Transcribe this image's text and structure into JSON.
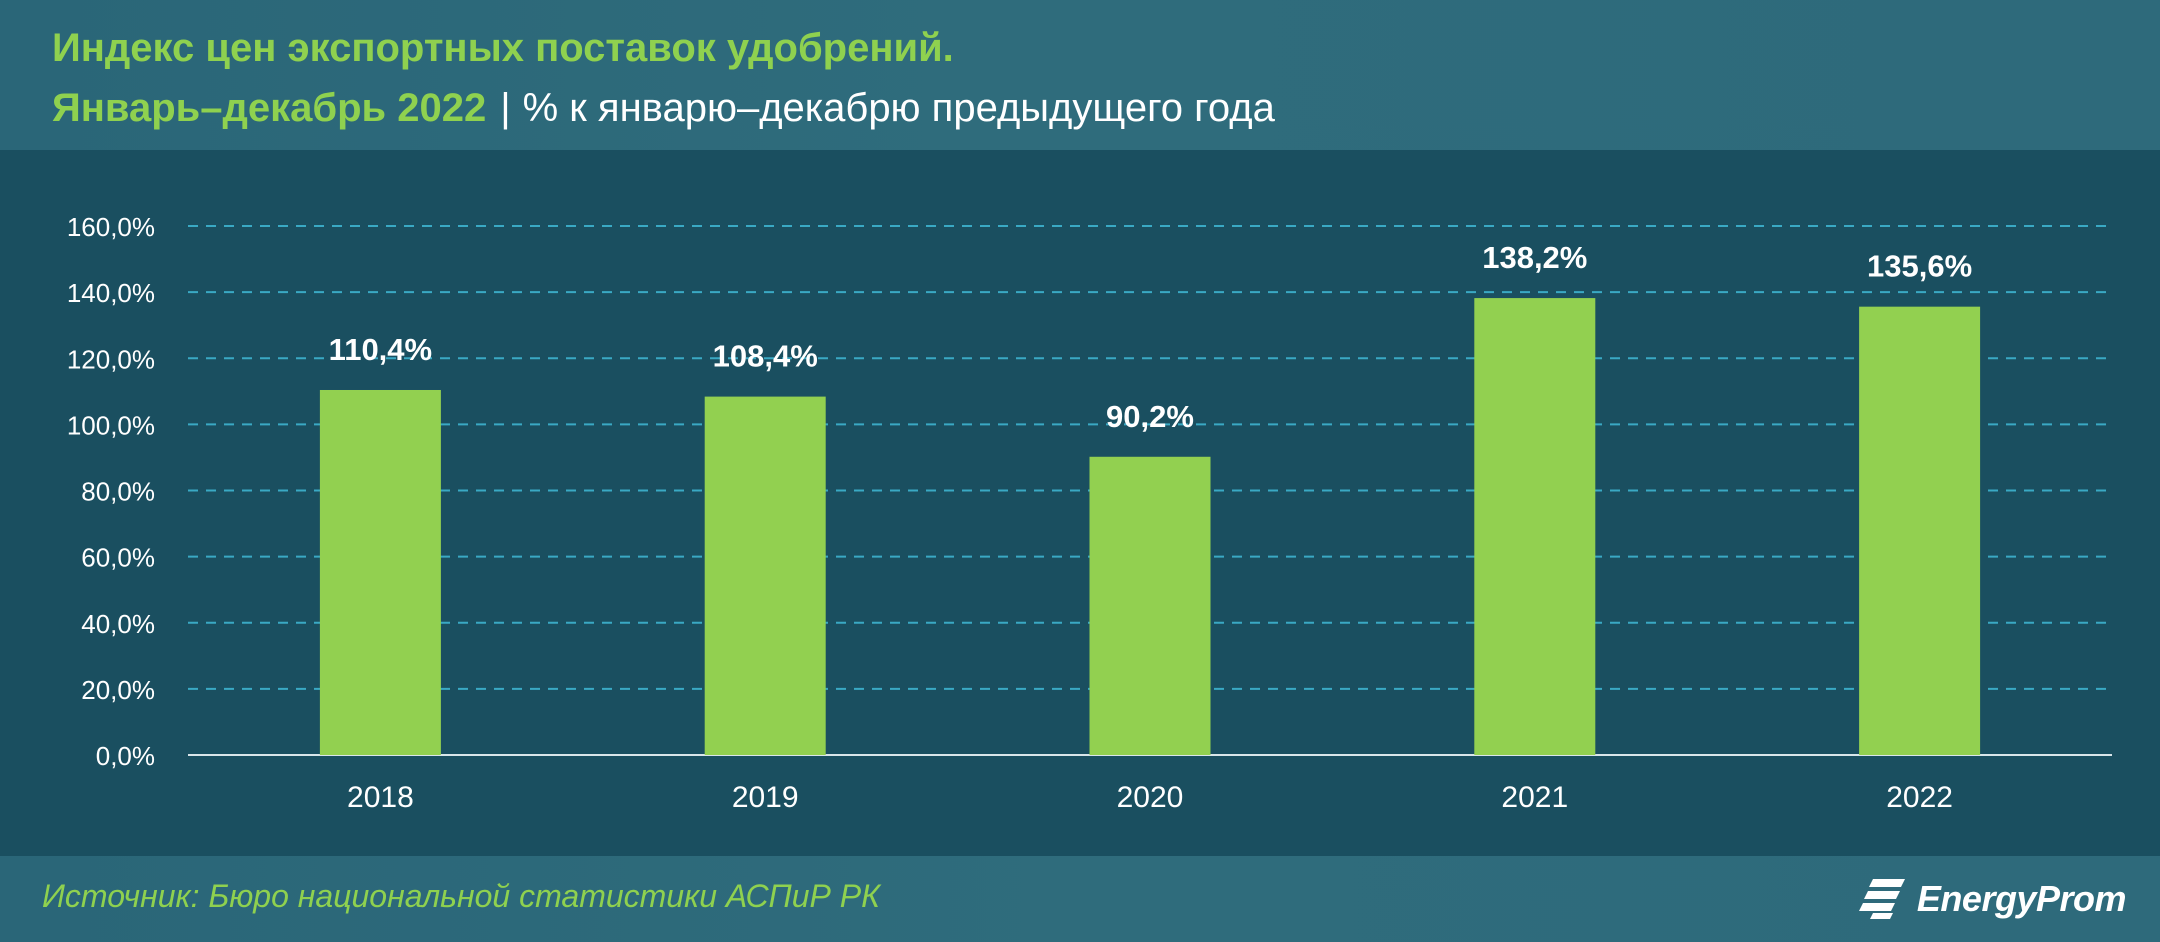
{
  "header": {
    "title": "Индекс цен экспортных поставок удобрений.",
    "subtitle_period": "Январь–декабрь 2022",
    "subtitle_separator": "|",
    "subtitle_unit": "% к январю–декабрю предыдущего года"
  },
  "footer": {
    "source": "Источник: Бюро национальной статистики АСПиР РК",
    "brand": "EnergyProm"
  },
  "colors": {
    "accent_green": "#8fd14f",
    "bar": "#92d050",
    "background": "#1a4f60",
    "header_background": "#2e6a7b",
    "gridline": "#3aa9c4"
  },
  "chart_data": {
    "type": "bar",
    "categories": [
      "2018",
      "2019",
      "2020",
      "2021",
      "2022"
    ],
    "values": [
      110.4,
      108.4,
      90.2,
      138.2,
      135.6
    ],
    "data_labels": [
      "110,4%",
      "108,4%",
      "90,2%",
      "138,2%",
      "135,6%"
    ],
    "ylim": [
      0,
      160
    ],
    "yticks": [
      0,
      20,
      40,
      60,
      80,
      100,
      120,
      140,
      160
    ],
    "ytick_labels": [
      "0,0%",
      "20,0%",
      "40,0%",
      "60,0%",
      "80,0%",
      "100,0%",
      "120,0%",
      "140,0%",
      "160,0%"
    ],
    "grid": true,
    "legend": false
  }
}
